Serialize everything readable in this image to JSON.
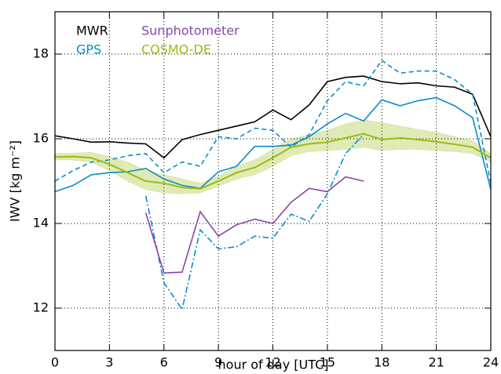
{
  "chart_data": {
    "type": "line",
    "y_label": "IWV [kg m⁻²]",
    "x_label": "hour of day [UTC]",
    "x": [
      0,
      1,
      2,
      3,
      4,
      5,
      6,
      7,
      8,
      9,
      10,
      11,
      12,
      13,
      14,
      15,
      16,
      17,
      18,
      19,
      20,
      21,
      22,
      23,
      24
    ],
    "xlim": [
      0,
      24
    ],
    "xticks": [
      0,
      3,
      6,
      9,
      12,
      15,
      18,
      21,
      24
    ],
    "ylim": [
      11,
      19
    ],
    "yticks": [
      12,
      14,
      16,
      18
    ],
    "grid": true,
    "series": [
      {
        "name": "MWR",
        "color": "#000000",
        "dash": "solid",
        "values": [
          16.07,
          16.0,
          15.92,
          15.93,
          15.9,
          15.88,
          15.55,
          15.98,
          16.1,
          16.2,
          16.3,
          16.4,
          16.68,
          16.45,
          16.8,
          17.35,
          17.45,
          17.48,
          17.35,
          17.3,
          17.32,
          17.25,
          17.22,
          17.05,
          16.05
        ]
      },
      {
        "name": "GPS",
        "color": "#0a8ccc",
        "dash": "solid",
        "values": [
          14.75,
          14.9,
          15.15,
          15.2,
          15.22,
          15.3,
          15.05,
          14.9,
          14.83,
          15.22,
          15.35,
          15.82,
          15.82,
          15.85,
          16.05,
          16.35,
          16.6,
          16.42,
          16.92,
          16.78,
          16.9,
          16.97,
          16.78,
          16.5,
          14.8
        ]
      },
      {
        "color": "#0a8ccc",
        "dash": "dashed",
        "values": [
          15.0,
          15.25,
          15.45,
          15.5,
          15.6,
          15.65,
          15.2,
          15.45,
          15.35,
          16.05,
          16.0,
          16.25,
          16.2,
          15.8,
          16.1,
          16.9,
          17.35,
          17.25,
          17.85,
          17.55,
          17.6,
          17.6,
          17.4,
          17.05,
          14.95
        ]
      },
      {
        "color": "#0a8ccc",
        "dash": "dashdot",
        "values": [
          null,
          null,
          null,
          null,
          null,
          14.65,
          12.6,
          11.97,
          13.85,
          13.4,
          13.45,
          13.7,
          13.65,
          14.22,
          14.05,
          14.7,
          15.65,
          16.1,
          null,
          null,
          null,
          null,
          null,
          null,
          null
        ]
      },
      {
        "name": "Sunphotometer",
        "color": "#8844aa",
        "dash": "solid",
        "values": [
          null,
          null,
          null,
          null,
          null,
          14.25,
          12.83,
          12.85,
          14.28,
          13.7,
          13.97,
          14.1,
          14.0,
          14.5,
          14.83,
          14.75,
          15.1,
          15.0,
          null,
          null,
          null,
          null,
          null,
          null,
          null
        ]
      },
      {
        "name": "COSMO-DE",
        "color": "#99bb11",
        "dash": "solid",
        "values": [
          15.57,
          15.58,
          15.55,
          15.4,
          15.2,
          15.0,
          14.95,
          14.85,
          14.82,
          15.0,
          15.2,
          15.32,
          15.55,
          15.8,
          15.88,
          15.92,
          16.02,
          16.12,
          15.98,
          16.02,
          15.98,
          15.93,
          15.87,
          15.8,
          15.55
        ],
        "lower": [
          15.5,
          15.5,
          15.45,
          15.25,
          15.0,
          14.8,
          14.72,
          14.7,
          14.72,
          14.88,
          15.05,
          15.15,
          15.35,
          15.6,
          15.7,
          15.72,
          15.75,
          15.8,
          15.72,
          15.75,
          15.75,
          15.72,
          15.7,
          15.65,
          15.45
        ],
        "upper": [
          15.65,
          15.66,
          15.68,
          15.58,
          15.45,
          15.25,
          15.15,
          15.05,
          14.95,
          15.12,
          15.35,
          15.5,
          15.75,
          16.0,
          16.1,
          16.2,
          16.35,
          16.45,
          16.38,
          16.3,
          16.22,
          16.15,
          16.05,
          15.95,
          15.65
        ]
      }
    ]
  }
}
